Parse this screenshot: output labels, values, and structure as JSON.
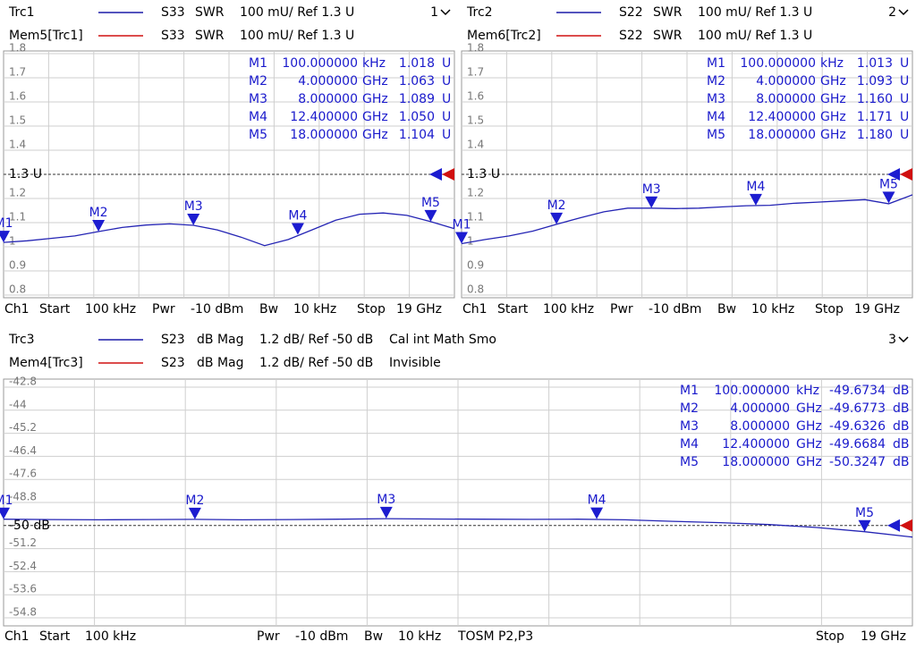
{
  "chart_data": [
    {
      "type": "line",
      "number": "1",
      "header": [
        {
          "label": "Trc1",
          "color": "#1c1ca8",
          "texts": [
            "S33",
            "SWR",
            "100 mU/ Ref 1.3 U"
          ]
        },
        {
          "label": "Mem5[Trc1]",
          "color": "#d01010",
          "texts": [
            "S33",
            "SWR",
            "100 mU/ Ref 1.3 U"
          ]
        }
      ],
      "ylim": [
        0.8,
        1.8
      ],
      "yticks": [
        1.8,
        1.7,
        1.6,
        1.5,
        1.4,
        {
          "value": 1.3,
          "label": "1.3 U"
        },
        1.2,
        1.1,
        1,
        0.9,
        0.8
      ],
      "xlim": [
        0.0001,
        19
      ],
      "x": [
        0.0001,
        1,
        2,
        3,
        4,
        5,
        6,
        7,
        8,
        9,
        10,
        11,
        12,
        13,
        14,
        15,
        16,
        17,
        18,
        19
      ],
      "series": [
        {
          "name": "Trc1",
          "color": "#2424b4",
          "values": [
            1.018,
            1.025,
            1.035,
            1.045,
            1.063,
            1.08,
            1.09,
            1.095,
            1.089,
            1.07,
            1.04,
            1.005,
            1.03,
            1.07,
            1.11,
            1.135,
            1.14,
            1.13,
            1.104,
            1.075
          ]
        }
      ],
      "markers": [
        {
          "label": "M1",
          "x": 0.0001,
          "y": 1.018
        },
        {
          "label": "M2",
          "x": 4,
          "y": 1.063
        },
        {
          "label": "M3",
          "x": 8,
          "y": 1.089
        },
        {
          "label": "M4",
          "x": 12.4,
          "y": 1.05
        },
        {
          "label": "M5",
          "x": 18,
          "y": 1.104
        }
      ],
      "marker_table": [
        [
          "M1",
          "100.000000",
          "kHz",
          "1.018",
          "U"
        ],
        [
          "M2",
          "4.000000",
          "GHz",
          "1.063",
          "U"
        ],
        [
          "M3",
          "8.000000",
          "GHz",
          "1.089",
          "U"
        ],
        [
          "M4",
          "12.400000",
          "GHz",
          "1.050",
          "U"
        ],
        [
          "M5",
          "18.000000",
          "GHz",
          "1.104",
          "U"
        ]
      ],
      "footer": [
        "Ch1",
        "Start",
        "100 kHz",
        "Pwr",
        "-10 dBm",
        "Bw",
        "10 kHz",
        "Stop",
        "19 GHz"
      ]
    },
    {
      "type": "line",
      "number": "2",
      "header": [
        {
          "label": "Trc2",
          "color": "#1c1ca8",
          "texts": [
            "S22",
            "SWR",
            "100 mU/ Ref 1.3 U"
          ]
        },
        {
          "label": "Mem6[Trc2]",
          "color": "#d01010",
          "texts": [
            "S22",
            "SWR",
            "100 mU/ Ref 1.3 U"
          ]
        }
      ],
      "ylim": [
        0.8,
        1.8
      ],
      "yticks": [
        1.8,
        1.7,
        1.6,
        1.5,
        1.4,
        {
          "value": 1.3,
          "label": "1.3 U"
        },
        1.2,
        1.1,
        1,
        0.9,
        0.8
      ],
      "xlim": [
        0.0001,
        19
      ],
      "x": [
        0.0001,
        1,
        2,
        3,
        4,
        5,
        6,
        7,
        8,
        9,
        10,
        11,
        12,
        13,
        14,
        15,
        16,
        17,
        18,
        19
      ],
      "series": [
        {
          "name": "Trc2",
          "color": "#2424b4",
          "values": [
            1.013,
            1.03,
            1.045,
            1.065,
            1.093,
            1.12,
            1.145,
            1.16,
            1.16,
            1.158,
            1.16,
            1.165,
            1.17,
            1.172,
            1.18,
            1.185,
            1.19,
            1.195,
            1.178,
            1.215
          ]
        }
      ],
      "markers": [
        {
          "label": "M1",
          "x": 0.0001,
          "y": 1.013
        },
        {
          "label": "M2",
          "x": 4,
          "y": 1.093
        },
        {
          "label": "M3",
          "x": 8,
          "y": 1.16
        },
        {
          "label": "M4",
          "x": 12.4,
          "y": 1.171
        },
        {
          "label": "M5",
          "x": 18,
          "y": 1.18
        }
      ],
      "marker_table": [
        [
          "M1",
          "100.000000",
          "kHz",
          "1.013",
          "U"
        ],
        [
          "M2",
          "4.000000",
          "GHz",
          "1.093",
          "U"
        ],
        [
          "M3",
          "8.000000",
          "GHz",
          "1.160",
          "U"
        ],
        [
          "M4",
          "12.400000",
          "GHz",
          "1.171",
          "U"
        ],
        [
          "M5",
          "18.000000",
          "GHz",
          "1.180",
          "U"
        ]
      ],
      "footer": [
        "Ch1",
        "Start",
        "100 kHz",
        "Pwr",
        "-10 dBm",
        "Bw",
        "10 kHz",
        "Stop",
        "19 GHz"
      ]
    },
    {
      "type": "line",
      "number": "3",
      "header": [
        {
          "label": "Trc3",
          "color": "#1c1ca8",
          "texts": [
            "S23",
            "dB Mag",
            "1.2 dB/ Ref -50 dB",
            "Cal int Math Smo"
          ]
        },
        {
          "label": "Mem4[Trc3]",
          "color": "#d01010",
          "texts": [
            "S23",
            "dB Mag",
            "1.2 dB/ Ref -50 dB",
            "Invisible"
          ]
        }
      ],
      "ylim": [
        -54.8,
        -42.8
      ],
      "yticks": [
        -42.8,
        -44,
        -45.2,
        -46.4,
        -47.6,
        -48.8,
        {
          "value": -50,
          "label": "-50 dB"
        },
        -51.2,
        -52.4,
        -53.6,
        -54.8
      ],
      "xlim": [
        0.0001,
        19
      ],
      "x": [
        0.0001,
        1,
        2,
        3,
        4,
        5,
        6,
        7,
        8,
        9,
        10,
        11,
        12,
        13,
        14,
        15,
        16,
        17,
        18,
        19
      ],
      "series": [
        {
          "name": "Trc3",
          "color": "#2424b4",
          "values": [
            -49.67,
            -49.69,
            -49.7,
            -49.69,
            -49.68,
            -49.7,
            -49.69,
            -49.67,
            -49.64,
            -49.66,
            -49.67,
            -49.68,
            -49.67,
            -49.7,
            -49.78,
            -49.85,
            -49.95,
            -50.1,
            -50.32,
            -50.6
          ]
        }
      ],
      "markers": [
        {
          "label": "M1",
          "x": 0.0001,
          "y": -49.6734
        },
        {
          "label": "M2",
          "x": 4,
          "y": -49.6773
        },
        {
          "label": "M3",
          "x": 8,
          "y": -49.6326
        },
        {
          "label": "M4",
          "x": 12.4,
          "y": -49.6684
        },
        {
          "label": "M5",
          "x": 18,
          "y": -50.3247
        }
      ],
      "marker_table": [
        [
          "M1",
          "100.000000",
          "kHz",
          "-49.6734",
          "dB"
        ],
        [
          "M2",
          "4.000000",
          "GHz",
          "-49.6773",
          "dB"
        ],
        [
          "M3",
          "8.000000",
          "GHz",
          "-49.6326",
          "dB"
        ],
        [
          "M4",
          "12.400000",
          "GHz",
          "-49.6684",
          "dB"
        ],
        [
          "M5",
          "18.000000",
          "GHz",
          "-50.3247",
          "dB"
        ]
      ],
      "footer": [
        "Ch1",
        "Start",
        "100 kHz",
        "Pwr",
        "-10 dBm",
        "Bw",
        "10 kHz",
        "TOSM P2,P3",
        "Stop",
        "19 GHz"
      ]
    }
  ]
}
